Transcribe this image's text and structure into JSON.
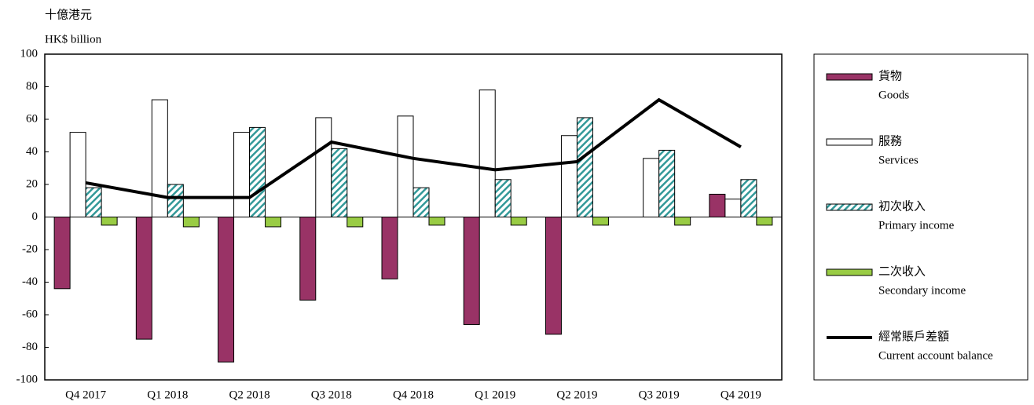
{
  "chart_data": {
    "type": "bar",
    "y_label": [
      "十億港元",
      "HK$ billion"
    ],
    "categories": [
      "Q4 2017",
      "Q1 2018",
      "Q2 2018",
      "Q3 2018",
      "Q4 2018",
      "Q1 2019",
      "Q2 2019",
      "Q3 2019",
      "Q4 2019"
    ],
    "series": [
      {
        "name": "貨物",
        "name_en": "Goods",
        "type": "bar",
        "color": "#993366",
        "values": [
          -44,
          -75,
          -89,
          -51,
          -38,
          -66,
          -72,
          0,
          14
        ]
      },
      {
        "name": "服務",
        "name_en": "Services",
        "type": "bar",
        "color": "#ffffff",
        "values": [
          52,
          72,
          52,
          61,
          62,
          78,
          50,
          36,
          11
        ]
      },
      {
        "name": "初次收入",
        "name_en": "Primary income",
        "type": "bar",
        "color": "#339999",
        "pattern": "hatch",
        "values": [
          18,
          20,
          55,
          42,
          18,
          23,
          61,
          41,
          23
        ]
      },
      {
        "name": "二次收入",
        "name_en": "Secondary income",
        "type": "bar",
        "color": "#99cc44",
        "values": [
          -5,
          -6,
          -6,
          -6,
          -5,
          -5,
          -5,
          -5,
          -5
        ]
      },
      {
        "name": "經常賬戶差額",
        "name_en": "Current account balance",
        "type": "line",
        "color": "#000000",
        "values": [
          21,
          12,
          12,
          46,
          36,
          29,
          34,
          72,
          43
        ]
      }
    ],
    "ylim": [
      -100,
      100
    ],
    "yticks": [
      -100,
      -80,
      -60,
      -40,
      -20,
      0,
      20,
      40,
      60,
      80,
      100
    ],
    "grid": false,
    "legend": "right"
  }
}
